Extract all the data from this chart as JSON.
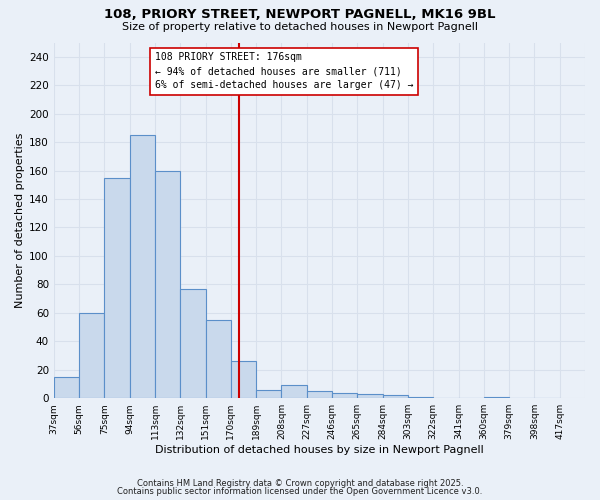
{
  "title_line1": "108, PRIORY STREET, NEWPORT PAGNELL, MK16 9BL",
  "title_line2": "Size of property relative to detached houses in Newport Pagnell",
  "xlabel": "Distribution of detached houses by size in Newport Pagnell",
  "ylabel": "Number of detached properties",
  "bar_values": [
    15,
    60,
    155,
    185,
    160,
    77,
    55,
    26,
    6,
    9,
    5,
    4,
    3,
    2,
    1,
    0,
    0,
    1,
    0,
    0
  ],
  "bin_labels": [
    "37sqm",
    "56sqm",
    "75sqm",
    "94sqm",
    "113sqm",
    "132sqm",
    "151sqm",
    "170sqm",
    "189sqm",
    "208sqm",
    "227sqm",
    "246sqm",
    "265sqm",
    "284sqm",
    "303sqm",
    "322sqm",
    "341sqm",
    "360sqm",
    "379sqm",
    "398sqm",
    "417sqm"
  ],
  "bin_edges": [
    37,
    56,
    75,
    94,
    113,
    132,
    151,
    170,
    189,
    208,
    227,
    246,
    265,
    284,
    303,
    322,
    341,
    360,
    379,
    398,
    417
  ],
  "bar_color": "#c9d9ec",
  "bar_edge_color": "#5b8fc9",
  "vline_x": 176,
  "vline_color": "#cc0000",
  "annotation_text": "108 PRIORY STREET: 176sqm\n← 94% of detached houses are smaller (711)\n6% of semi-detached houses are larger (47) →",
  "annotation_box_color": "#ffffff",
  "annotation_box_edge": "#cc0000",
  "bg_color": "#eaf0f8",
  "grid_color": "#d8e0ec",
  "footnote1": "Contains HM Land Registry data © Crown copyright and database right 2025.",
  "footnote2": "Contains public sector information licensed under the Open Government Licence v3.0.",
  "ylim": [
    0,
    250
  ],
  "yticks": [
    0,
    20,
    40,
    60,
    80,
    100,
    120,
    140,
    160,
    180,
    200,
    220,
    240
  ]
}
